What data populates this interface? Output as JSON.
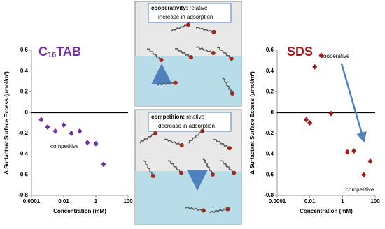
{
  "chart_data": [
    {
      "type": "scatter",
      "title": [
        "C",
        "16",
        "TAB"
      ],
      "title_color": "#7030a0",
      "x_label": "Concentration (mM)",
      "y_label": "Δ Surfactant Surface Excess (μmol/m²)",
      "xscale": "log",
      "xlim": [
        0.0001,
        100
      ],
      "xticks": [
        0.0001,
        0.01,
        1,
        100
      ],
      "ylim": [
        -0.8,
        0.6
      ],
      "yticks": [
        0.6,
        0.4,
        0.2,
        0,
        -0.2,
        -0.4,
        -0.6,
        -0.8
      ],
      "grid": false,
      "color": "#7030a0",
      "x": [
        0.0004,
        0.001,
        0.003,
        0.01,
        0.03,
        0.1,
        0.3,
        1,
        3
      ],
      "values": [
        -0.07,
        -0.14,
        -0.18,
        -0.12,
        -0.2,
        -0.18,
        -0.29,
        -0.3,
        -0.5
      ],
      "annotations": [
        "competitive"
      ]
    },
    {
      "type": "scatter",
      "title": [
        "SDS"
      ],
      "title_color": "#a31a1a",
      "x_label": "Concentration (mM)",
      "y_label": "Δ Surfactant Surface Excess (μmol/m²)",
      "xscale": "log",
      "xlim": [
        0.0001,
        100
      ],
      "xticks": [
        0.0001,
        0.01,
        1,
        100
      ],
      "ylim": [
        -0.8,
        0.6
      ],
      "yticks": [
        0.6,
        0.4,
        0.2,
        0,
        -0.2,
        -0.4,
        -0.6,
        -0.8
      ],
      "grid": false,
      "color": "#a31a1a",
      "x": [
        0.006,
        0.01,
        0.02,
        0.05,
        0.2,
        2,
        5,
        20,
        50
      ],
      "values": [
        -0.07,
        -0.1,
        0.44,
        0.55,
        -0.01,
        -0.38,
        -0.37,
        -0.6,
        -0.47
      ],
      "annotations": [
        "cooperative",
        "competitive"
      ]
    }
  ],
  "diagram": {
    "panels": [
      {
        "bold": "cooperativity:",
        "text": [
          "relative",
          "increase in adsorption"
        ]
      },
      {
        "bold": "competition:",
        "text": [
          "relative",
          "decrease in adsorption"
        ]
      }
    ]
  }
}
